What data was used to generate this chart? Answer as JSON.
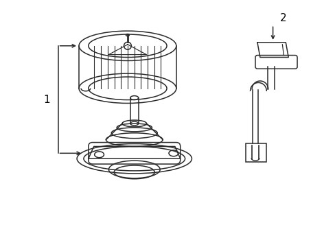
{
  "bg_color": "#ffffff",
  "line_color": "#2a2a2a",
  "label_color": "#000000",
  "label1": "1",
  "label2": "2",
  "figsize": [
    4.89,
    3.6
  ],
  "dpi": 100
}
